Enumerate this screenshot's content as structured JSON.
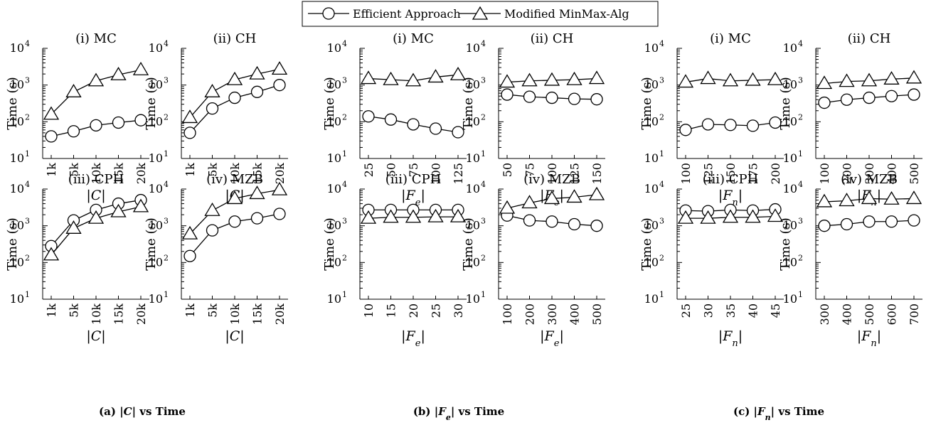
{
  "legend": {
    "series": [
      "Efficient Approach",
      "Modified MinMax-Alg"
    ],
    "markers": [
      "circle",
      "triangle"
    ]
  },
  "captions": [
    {
      "label": "(a)",
      "text": "|C| vs Time"
    },
    {
      "label": "(b)",
      "text": "|Fe| vs Time"
    },
    {
      "label": "(c)",
      "text": "|Fn| vs Time"
    }
  ],
  "chart_data": [
    {
      "type": "line",
      "title": "(i) MC",
      "xlabel": "|C|",
      "ylabel": "Time (s)",
      "yscale": "log",
      "ylim": [
        10,
        10000
      ],
      "categories": [
        "1k",
        "5k",
        "10k",
        "15k",
        "20k"
      ],
      "series": [
        {
          "name": "Efficient Approach",
          "values": [
            40,
            55,
            80,
            95,
            110
          ]
        },
        {
          "name": "Modified MinMax-Alg",
          "values": [
            160,
            650,
            1300,
            1900,
            2600
          ]
        }
      ]
    },
    {
      "type": "line",
      "title": "(ii) CH",
      "xlabel": "|C|",
      "ylabel": "Time (s)",
      "yscale": "log",
      "ylim": [
        10,
        10000
      ],
      "categories": [
        "1k",
        "5k",
        "10k",
        "15k",
        "20k"
      ],
      "series": [
        {
          "name": "Efficient Approach",
          "values": [
            50,
            230,
            450,
            650,
            1000
          ]
        },
        {
          "name": "Modified MinMax-Alg",
          "values": [
            130,
            650,
            1400,
            2000,
            2700
          ]
        }
      ]
    },
    {
      "type": "line",
      "title": "(i) MC",
      "xlabel": "|Fe|",
      "ylabel": "Time (s)",
      "yscale": "log",
      "ylim": [
        10,
        10000
      ],
      "categories": [
        "25",
        "50",
        "75",
        "100",
        "125"
      ],
      "series": [
        {
          "name": "Efficient Approach",
          "values": [
            140,
            115,
            85,
            65,
            52
          ]
        },
        {
          "name": "Modified MinMax-Alg",
          "values": [
            1500,
            1400,
            1300,
            1650,
            1900
          ]
        }
      ]
    },
    {
      "type": "line",
      "title": "(ii) CH",
      "xlabel": "|Fe|",
      "ylabel": "Time (s)",
      "yscale": "log",
      "ylim": [
        10,
        10000
      ],
      "categories": [
        "50",
        "75",
        "100",
        "125",
        "150"
      ],
      "series": [
        {
          "name": "Efficient Approach",
          "values": [
            550,
            480,
            450,
            420,
            410
          ]
        },
        {
          "name": "Modified MinMax-Alg",
          "values": [
            1200,
            1300,
            1350,
            1400,
            1500
          ]
        }
      ]
    },
    {
      "type": "line",
      "title": "(i) MC",
      "xlabel": "|Fn|",
      "ylabel": "Time (s)",
      "yscale": "log",
      "ylim": [
        10,
        10000
      ],
      "categories": [
        "100",
        "125",
        "150",
        "175",
        "200"
      ],
      "series": [
        {
          "name": "Efficient Approach",
          "values": [
            60,
            85,
            82,
            78,
            95
          ]
        },
        {
          "name": "Modified MinMax-Alg",
          "values": [
            1200,
            1500,
            1300,
            1350,
            1400
          ]
        }
      ]
    },
    {
      "type": "line",
      "title": "(ii) CH",
      "xlabel": "|Fn|",
      "ylabel": "Time (s)",
      "yscale": "log",
      "ylim": [
        10,
        10000
      ],
      "categories": [
        "100",
        "200",
        "300",
        "400",
        "500"
      ],
      "series": [
        {
          "name": "Efficient Approach",
          "values": [
            330,
            400,
            450,
            500,
            550
          ]
        },
        {
          "name": "Modified MinMax-Alg",
          "values": [
            1100,
            1250,
            1300,
            1450,
            1550
          ]
        }
      ]
    },
    {
      "type": "line",
      "title": "(iii) CPH",
      "xlabel": "|C|",
      "ylabel": "Time (s)",
      "yscale": "log",
      "ylim": [
        10,
        10000
      ],
      "categories": [
        "1k",
        "5k",
        "10k",
        "15k",
        "20k"
      ],
      "series": [
        {
          "name": "Efficient Approach",
          "values": [
            280,
            1400,
            2700,
            4000,
            5000
          ]
        },
        {
          "name": "Modified MinMax-Alg",
          "values": [
            160,
            850,
            1600,
            2400,
            3300
          ]
        }
      ]
    },
    {
      "type": "line",
      "title": "(iv) MZB",
      "xlabel": "|C|",
      "ylabel": "Time (s)",
      "yscale": "log",
      "ylim": [
        10,
        10000
      ],
      "categories": [
        "1k",
        "5k",
        "10k",
        "15k",
        "20k"
      ],
      "series": [
        {
          "name": "Efficient Approach",
          "values": [
            150,
            750,
            1300,
            1600,
            2100
          ]
        },
        {
          "name": "Modified MinMax-Alg",
          "values": [
            600,
            2600,
            5500,
            7500,
            9500
          ]
        }
      ]
    },
    {
      "type": "line",
      "title": "(iii) CPH",
      "xlabel": "|Fe|",
      "ylabel": "Time (s)",
      "yscale": "log",
      "ylim": [
        10,
        10000
      ],
      "categories": [
        "10",
        "15",
        "20",
        "25",
        "30"
      ],
      "series": [
        {
          "name": "Efficient Approach",
          "values": [
            2700,
            2700,
            2700,
            2700,
            2700
          ]
        },
        {
          "name": "Modified MinMax-Alg",
          "values": [
            1600,
            1700,
            1700,
            1750,
            1750
          ]
        }
      ]
    },
    {
      "type": "line",
      "title": "(iv) MZB",
      "xlabel": "|Fe|",
      "ylabel": "Time (s)",
      "yscale": "log",
      "ylim": [
        10,
        10000
      ],
      "categories": [
        "100",
        "200",
        "300",
        "400",
        "500"
      ],
      "series": [
        {
          "name": "Efficient Approach",
          "values": [
            1900,
            1400,
            1300,
            1100,
            1000
          ]
        },
        {
          "name": "Modified MinMax-Alg",
          "values": [
            3000,
            4200,
            5500,
            6000,
            7000
          ]
        }
      ]
    },
    {
      "type": "line",
      "title": "(iii) CPH",
      "xlabel": "|Fn|",
      "ylabel": "Time (s)",
      "yscale": "log",
      "ylim": [
        10,
        10000
      ],
      "categories": [
        "25",
        "30",
        "35",
        "40",
        "45"
      ],
      "series": [
        {
          "name": "Efficient Approach",
          "values": [
            2600,
            2500,
            2700,
            2600,
            2800
          ]
        },
        {
          "name": "Modified MinMax-Alg",
          "values": [
            1600,
            1600,
            1700,
            1700,
            1800
          ]
        }
      ]
    },
    {
      "type": "line",
      "title": "(iv) MZB",
      "xlabel": "|Fn|",
      "ylabel": "Time (s)",
      "yscale": "log",
      "ylim": [
        10,
        10000
      ],
      "categories": [
        "300",
        "400",
        "500",
        "600",
        "700"
      ],
      "series": [
        {
          "name": "Efficient Approach",
          "values": [
            1000,
            1100,
            1300,
            1300,
            1400
          ]
        },
        {
          "name": "Modified MinMax-Alg",
          "values": [
            4500,
            4800,
            5500,
            5300,
            5500
          ]
        }
      ]
    }
  ]
}
